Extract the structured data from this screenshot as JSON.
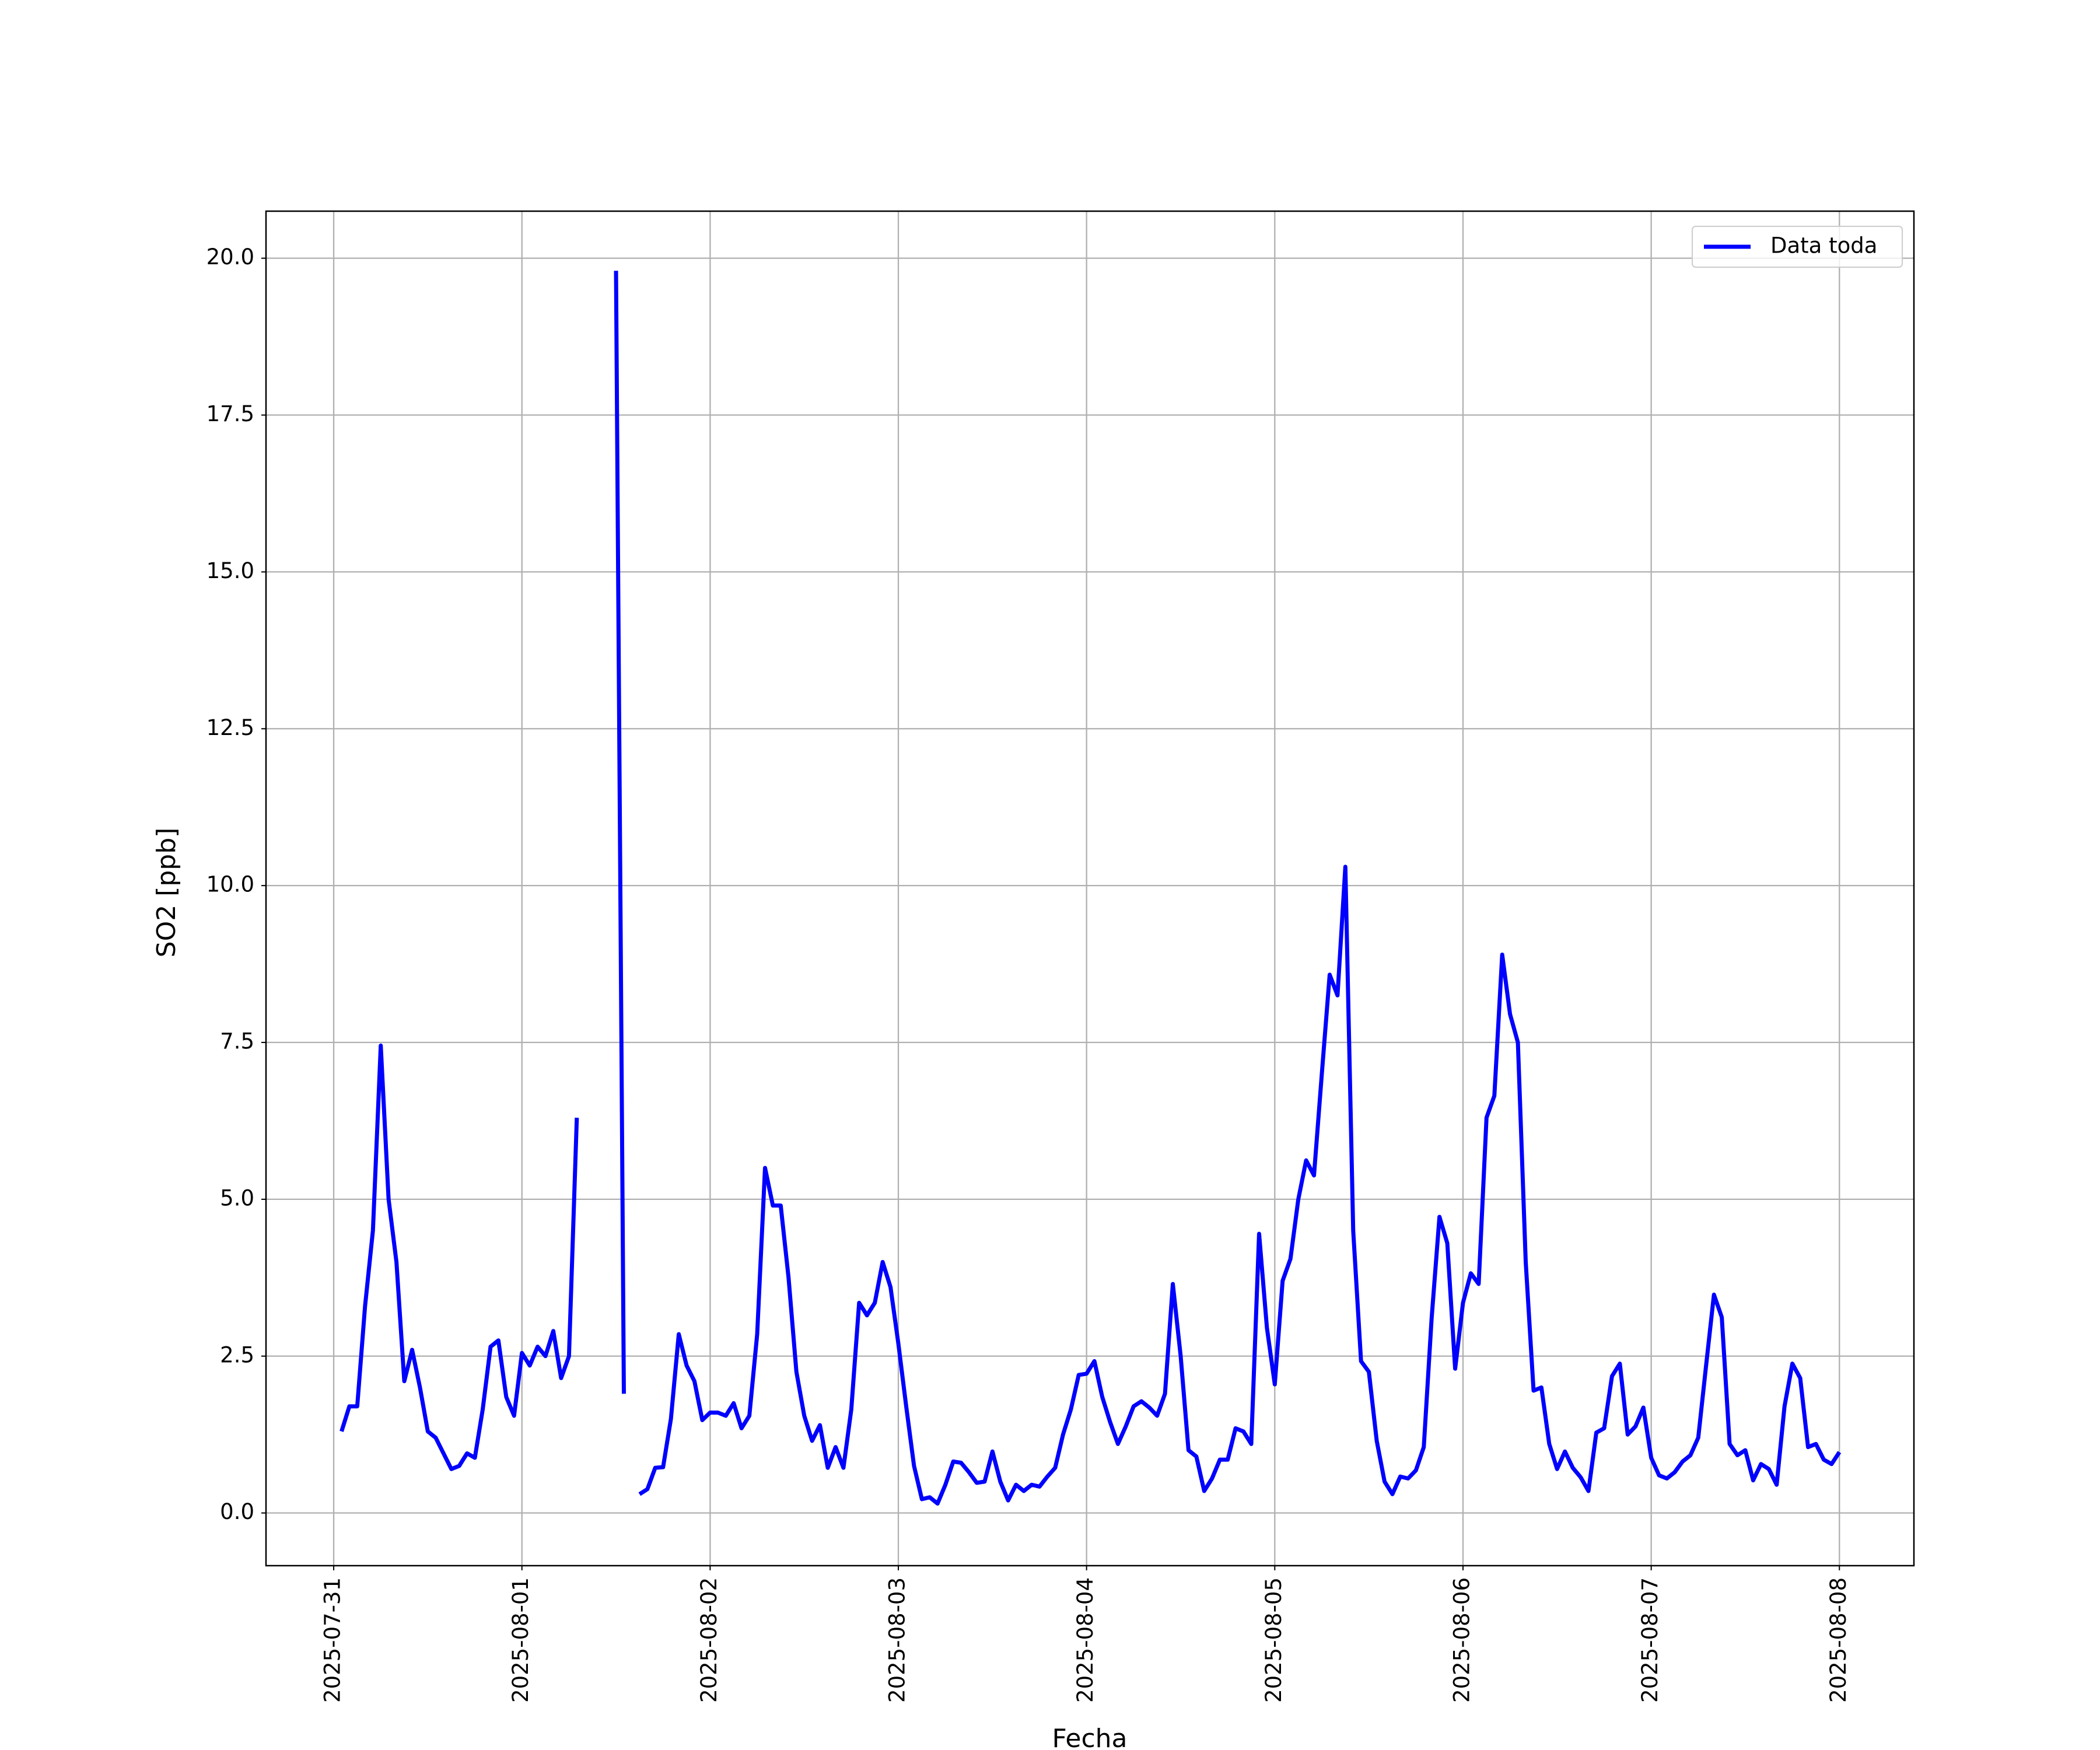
{
  "chart_data": {
    "type": "line",
    "xlabel": "Fecha",
    "ylabel": "SO2 [ppb]",
    "x": [
      "2025-07-31 01:00",
      "2025-07-31 02:00",
      "2025-07-31 03:00",
      "2025-07-31 04:00",
      "2025-07-31 05:00",
      "2025-07-31 06:00",
      "2025-07-31 07:00",
      "2025-07-31 08:00",
      "2025-07-31 09:00",
      "2025-07-31 10:00",
      "2025-07-31 11:00",
      "2025-07-31 12:00",
      "2025-07-31 13:00",
      "2025-07-31 14:00",
      "2025-07-31 15:00",
      "2025-07-31 16:00",
      "2025-07-31 17:00",
      "2025-07-31 18:00",
      "2025-07-31 19:00",
      "2025-07-31 20:00",
      "2025-07-31 21:00",
      "2025-07-31 22:00",
      "2025-07-31 23:00",
      "2025-08-01 00:00",
      "2025-08-01 01:00",
      "2025-08-01 02:00",
      "2025-08-01 03:00",
      "2025-08-01 04:00",
      "2025-08-01 05:00",
      "2025-08-01 06:00",
      "2025-08-01 07:00",
      "2025-08-01 08:00",
      "2025-08-01 09:00",
      "2025-08-01 10:00",
      "2025-08-01 11:00",
      "2025-08-01 12:00",
      "2025-08-01 13:00",
      "2025-08-01 14:00",
      "2025-08-01 15:00",
      "2025-08-01 16:00",
      "2025-08-01 17:00",
      "2025-08-01 18:00",
      "2025-08-01 19:00",
      "2025-08-01 20:00",
      "2025-08-01 21:00",
      "2025-08-01 22:00",
      "2025-08-01 23:00",
      "2025-08-02 00:00",
      "2025-08-02 01:00",
      "2025-08-02 02:00",
      "2025-08-02 03:00",
      "2025-08-02 04:00",
      "2025-08-02 05:00",
      "2025-08-02 06:00",
      "2025-08-02 07:00",
      "2025-08-02 08:00",
      "2025-08-02 09:00",
      "2025-08-02 10:00",
      "2025-08-02 11:00",
      "2025-08-02 12:00",
      "2025-08-02 13:00",
      "2025-08-02 14:00",
      "2025-08-02 15:00",
      "2025-08-02 16:00",
      "2025-08-02 17:00",
      "2025-08-02 18:00",
      "2025-08-02 19:00",
      "2025-08-02 20:00",
      "2025-08-02 21:00",
      "2025-08-02 22:00",
      "2025-08-02 23:00",
      "2025-08-03 00:00",
      "2025-08-03 01:00",
      "2025-08-03 02:00",
      "2025-08-03 03:00",
      "2025-08-03 04:00",
      "2025-08-03 05:00",
      "2025-08-03 06:00",
      "2025-08-03 07:00",
      "2025-08-03 08:00",
      "2025-08-03 09:00",
      "2025-08-03 10:00",
      "2025-08-03 11:00",
      "2025-08-03 12:00",
      "2025-08-03 13:00",
      "2025-08-03 14:00",
      "2025-08-03 15:00",
      "2025-08-03 16:00",
      "2025-08-03 17:00",
      "2025-08-03 18:00",
      "2025-08-03 19:00",
      "2025-08-03 20:00",
      "2025-08-03 21:00",
      "2025-08-03 22:00",
      "2025-08-03 23:00",
      "2025-08-04 00:00",
      "2025-08-04 01:00",
      "2025-08-04 02:00",
      "2025-08-04 03:00",
      "2025-08-04 04:00",
      "2025-08-04 05:00",
      "2025-08-04 06:00",
      "2025-08-04 07:00",
      "2025-08-04 08:00",
      "2025-08-04 09:00",
      "2025-08-04 10:00",
      "2025-08-04 11:00",
      "2025-08-04 12:00",
      "2025-08-04 13:00",
      "2025-08-04 14:00",
      "2025-08-04 15:00",
      "2025-08-04 16:00",
      "2025-08-04 17:00",
      "2025-08-04 18:00",
      "2025-08-04 19:00",
      "2025-08-04 20:00",
      "2025-08-04 21:00",
      "2025-08-04 22:00",
      "2025-08-04 23:00",
      "2025-08-05 00:00",
      "2025-08-05 01:00",
      "2025-08-05 02:00",
      "2025-08-05 03:00",
      "2025-08-05 04:00",
      "2025-08-05 05:00",
      "2025-08-05 06:00",
      "2025-08-05 07:00",
      "2025-08-05 08:00",
      "2025-08-05 09:00",
      "2025-08-05 10:00",
      "2025-08-05 11:00",
      "2025-08-05 12:00",
      "2025-08-05 13:00",
      "2025-08-05 14:00",
      "2025-08-05 15:00",
      "2025-08-05 16:00",
      "2025-08-05 17:00",
      "2025-08-05 18:00",
      "2025-08-05 19:00",
      "2025-08-05 20:00",
      "2025-08-05 21:00",
      "2025-08-05 22:00",
      "2025-08-05 23:00",
      "2025-08-06 00:00",
      "2025-08-06 01:00",
      "2025-08-06 02:00",
      "2025-08-06 03:00",
      "2025-08-06 04:00",
      "2025-08-06 05:00",
      "2025-08-06 06:00",
      "2025-08-06 07:00",
      "2025-08-06 08:00",
      "2025-08-06 09:00",
      "2025-08-06 10:00",
      "2025-08-06 11:00",
      "2025-08-06 12:00",
      "2025-08-06 13:00",
      "2025-08-06 14:00",
      "2025-08-06 15:00",
      "2025-08-06 16:00",
      "2025-08-06 17:00",
      "2025-08-06 18:00",
      "2025-08-06 19:00",
      "2025-08-06 20:00",
      "2025-08-06 21:00",
      "2025-08-06 22:00",
      "2025-08-06 23:00",
      "2025-08-07 00:00",
      "2025-08-07 01:00",
      "2025-08-07 02:00",
      "2025-08-07 03:00",
      "2025-08-07 04:00",
      "2025-08-07 05:00",
      "2025-08-07 06:00",
      "2025-08-07 07:00",
      "2025-08-07 08:00",
      "2025-08-07 09:00",
      "2025-08-07 10:00",
      "2025-08-07 11:00",
      "2025-08-07 12:00",
      "2025-08-07 13:00",
      "2025-08-07 14:00",
      "2025-08-07 15:00",
      "2025-08-07 16:00",
      "2025-08-07 17:00",
      "2025-08-07 18:00",
      "2025-08-07 19:00",
      "2025-08-07 20:00",
      "2025-08-07 21:00",
      "2025-08-07 22:00",
      "2025-08-07 23:00",
      "2025-08-08 00:00"
    ],
    "series": [
      {
        "name": "Data toda",
        "color": "#0000ff",
        "values": [
          1.3,
          1.7,
          1.7,
          3.3,
          4.5,
          7.45,
          5.0,
          4.0,
          2.1,
          2.6,
          2.0,
          1.3,
          1.2,
          0.95,
          0.7,
          0.75,
          0.95,
          0.88,
          1.65,
          2.65,
          2.75,
          1.85,
          1.55,
          2.55,
          2.35,
          2.65,
          2.5,
          2.9,
          2.15,
          2.5,
          6.3,
          null,
          null,
          null,
          null,
          19.8,
          1.9,
          null,
          0.3,
          0.38,
          0.72,
          0.73,
          1.5,
          2.85,
          2.35,
          2.1,
          1.48,
          1.6,
          1.6,
          1.55,
          1.75,
          1.35,
          1.55,
          2.85,
          5.5,
          4.9,
          4.9,
          3.75,
          2.25,
          1.55,
          1.15,
          1.4,
          0.72,
          1.05,
          0.72,
          1.65,
          3.35,
          3.15,
          3.35,
          4.0,
          3.6,
          2.7,
          1.7,
          0.75,
          0.22,
          0.25,
          0.15,
          0.45,
          0.82,
          0.8,
          0.65,
          0.48,
          0.5,
          0.98,
          0.5,
          0.2,
          0.45,
          0.35,
          0.45,
          0.42,
          0.58,
          0.72,
          1.25,
          1.65,
          2.2,
          2.22,
          2.42,
          1.85,
          1.45,
          1.1,
          1.38,
          1.7,
          1.78,
          1.68,
          1.55,
          1.9,
          3.65,
          2.5,
          1.0,
          0.9,
          0.35,
          0.55,
          0.85,
          0.85,
          1.35,
          1.3,
          1.1,
          4.45,
          2.95,
          2.05,
          3.7,
          4.05,
          5.0,
          5.62,
          5.38,
          7.0,
          8.58,
          8.25,
          10.3,
          4.5,
          2.42,
          2.25,
          1.15,
          0.5,
          0.3,
          0.58,
          0.55,
          0.68,
          1.05,
          3.1,
          4.72,
          4.3,
          2.3,
          3.35,
          3.82,
          3.65,
          6.3,
          6.65,
          8.9,
          7.95,
          7.5,
          4.0,
          1.95,
          2.0,
          1.1,
          0.7,
          0.98,
          0.72,
          0.57,
          0.35,
          1.28,
          1.35,
          2.18,
          2.38,
          1.25,
          1.38,
          1.68,
          0.88,
          0.6,
          0.55,
          0.65,
          0.82,
          0.92,
          1.2,
          2.35,
          3.48,
          3.12,
          1.1,
          0.92,
          1.0,
          0.52,
          0.78,
          0.7,
          0.45,
          1.7,
          2.38,
          2.15,
          1.05,
          1.1,
          0.85,
          0.78,
          0.97
        ]
      }
    ],
    "xlim": [
      "2025-07-30 15:22",
      "2025-08-08 09:30"
    ],
    "xticks": [
      "2025-07-31",
      "2025-08-01",
      "2025-08-02",
      "2025-08-03",
      "2025-08-04",
      "2025-08-05",
      "2025-08-06",
      "2025-08-07",
      "2025-08-08"
    ],
    "ylim": [
      -0.84,
      20.75
    ],
    "yticks": [
      {
        "value": 0,
        "label": "0.0"
      },
      2.5,
      {
        "value": 5,
        "label": "5.0"
      },
      7.5,
      {
        "value": 10,
        "label": "10.0"
      },
      12.5,
      {
        "value": 15,
        "label": "15.0"
      },
      17.5,
      {
        "value": 20,
        "label": "20.0"
      }
    ],
    "grid": true,
    "legend": "upper right"
  }
}
